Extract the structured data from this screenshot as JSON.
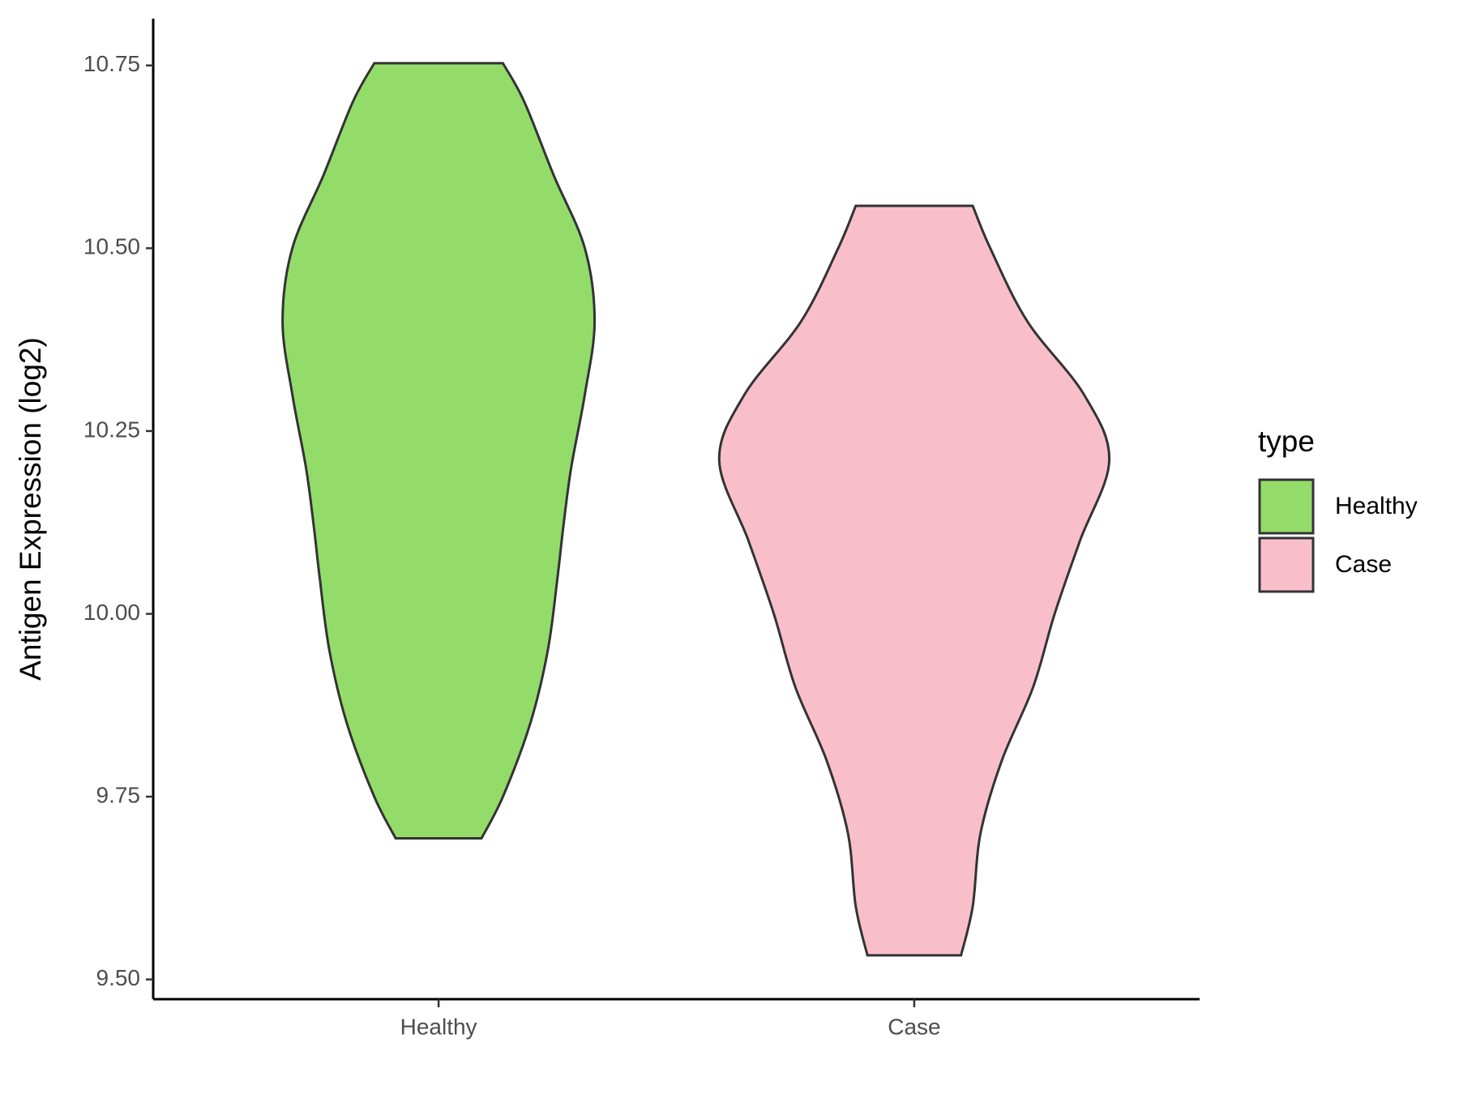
{
  "chart_data": {
    "type": "violin",
    "y_label": "Antigen Expression (log2)",
    "legend_title": "type",
    "legend_position": "right",
    "categories": [
      "Healthy",
      "Case"
    ],
    "ylim": [
      9.473,
      10.814
    ],
    "yticks": [
      {
        "value": 9.5,
        "label": "9.50"
      },
      9.75,
      {
        "value": 10,
        "label": "10.00"
      },
      10.25,
      {
        "value": 10.5,
        "label": "10.50"
      },
      10.75
    ],
    "series": [
      {
        "name": "Healthy",
        "color": "#93dc6a",
        "y": [
          9.693,
          9.75,
          9.85,
          9.95,
          10.05,
          10.12,
          10.2,
          10.3,
          10.4,
          10.5,
          10.6,
          10.7,
          10.753
        ],
        "density": [
          0.22,
          0.33,
          0.47,
          0.56,
          0.61,
          0.64,
          0.68,
          0.75,
          0.8,
          0.75,
          0.59,
          0.44,
          0.33
        ]
      },
      {
        "name": "Case",
        "color": "#f8bfcb",
        "y": [
          9.533,
          9.6,
          9.7,
          9.8,
          9.9,
          10.0,
          10.1,
          10.21,
          10.3,
          10.4,
          10.5,
          10.558
        ],
        "density": [
          0.24,
          0.3,
          0.34,
          0.45,
          0.61,
          0.72,
          0.85,
          1.0,
          0.87,
          0.58,
          0.39,
          0.3
        ]
      }
    ]
  }
}
